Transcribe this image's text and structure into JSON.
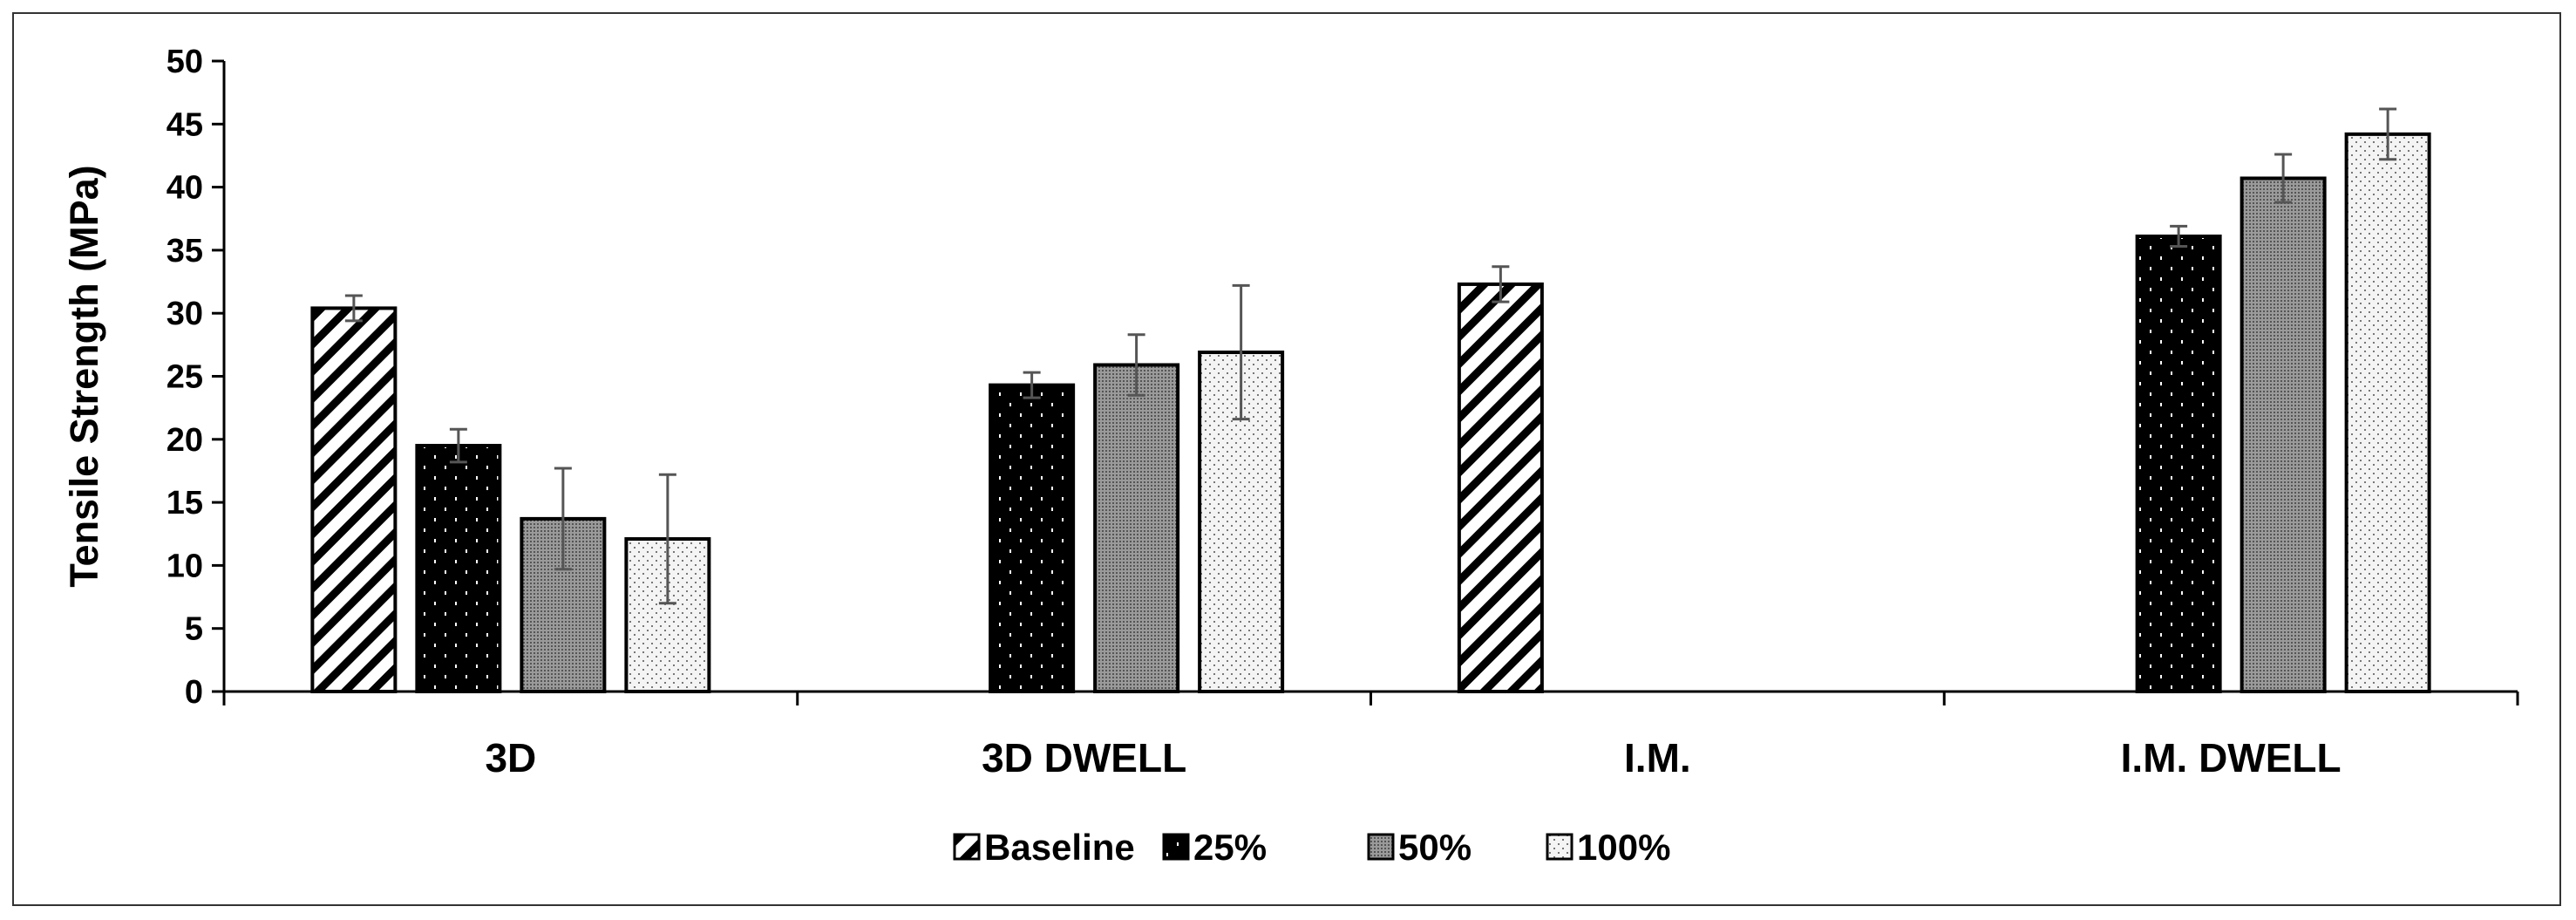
{
  "chart_data": {
    "type": "bar",
    "title": "",
    "xlabel": "",
    "ylabel": "Tensile Strength (MPa)",
    "ylim": [
      0,
      50
    ],
    "yticks": [
      0,
      5,
      10,
      15,
      20,
      25,
      30,
      35,
      40,
      45,
      50
    ],
    "grid": false,
    "legend_position": "bottom",
    "categories": [
      "3D",
      "3D DWELL",
      "I.M.",
      "I.M. DWELL"
    ],
    "series": [
      {
        "name": "Baseline",
        "pattern": "diagonal-stripes",
        "color": "#000000",
        "values": [
          30.4,
          null,
          32.3,
          null
        ],
        "errors": [
          1.0,
          null,
          1.4,
          null
        ]
      },
      {
        "name": "25%",
        "pattern": "black-white-dots",
        "color": "#000000",
        "values": [
          19.5,
          24.3,
          null,
          36.1
        ],
        "errors": [
          1.3,
          1.0,
          null,
          0.8
        ]
      },
      {
        "name": "50%",
        "pattern": "gray-dense-dots",
        "color": "#808080",
        "values": [
          13.7,
          25.9,
          null,
          40.7
        ],
        "errors": [
          4.0,
          2.4,
          null,
          1.9
        ]
      },
      {
        "name": "100%",
        "pattern": "light-dots",
        "color": "#e8e8e8",
        "values": [
          12.1,
          26.9,
          null,
          44.2
        ],
        "errors": [
          5.1,
          5.3,
          null,
          2.0
        ]
      }
    ]
  }
}
